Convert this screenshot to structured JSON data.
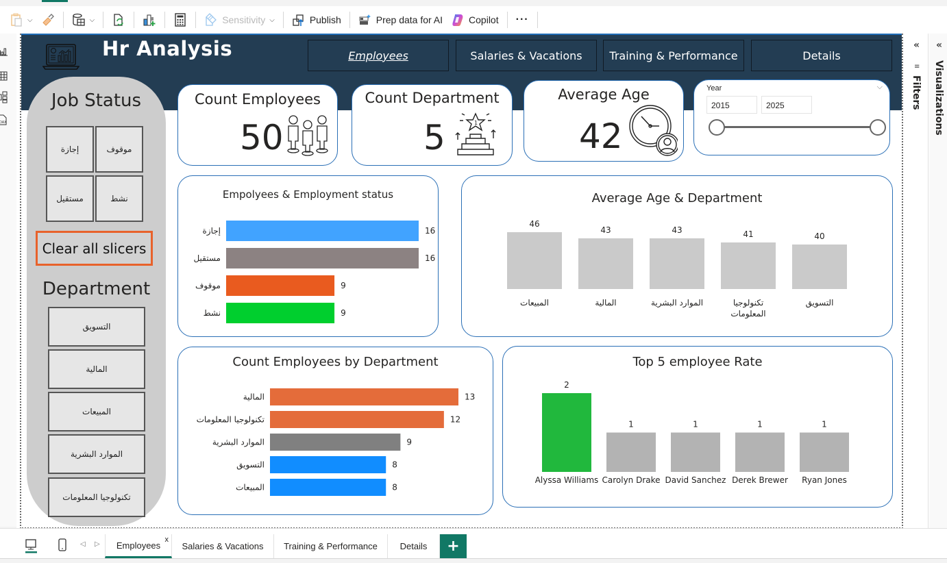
{
  "ribbon": {
    "items": [
      {
        "label": "",
        "icon": "paste-icon",
        "disabled": true
      },
      {
        "label": "",
        "icon": "format-painter-icon"
      },
      {
        "label": "",
        "icon": "get-data-icon"
      },
      {
        "label": "",
        "icon": "refresh-icon"
      },
      {
        "label": "",
        "icon": "new-visual-icon"
      },
      {
        "label": "",
        "icon": "calculator-icon"
      },
      {
        "label": "Sensitivity",
        "icon": "sensitivity-icon",
        "disabled": true
      },
      {
        "label": "Publish",
        "icon": "publish-icon"
      },
      {
        "label": "Prep data for AI",
        "icon": "prep-data-icon"
      },
      {
        "label": "Copilot",
        "icon": "copilot-icon"
      },
      {
        "label": "···",
        "icon": "more-icon"
      }
    ]
  },
  "header": {
    "title": "Hr Analysis",
    "nav": [
      {
        "label": "Employees",
        "active": true
      },
      {
        "label": "Salaries & Vacations",
        "active": false
      },
      {
        "label": "Training & Performance",
        "active": false
      },
      {
        "label": "Details",
        "active": false
      }
    ]
  },
  "sidepanel": {
    "job_status_title": "Job Status",
    "job_status_options": [
      "موقوف",
      "إجازة",
      "نشط",
      "مستقيل"
    ],
    "clear_label": "Clear all slicers",
    "department_title": "Department",
    "department_options": [
      "التسويق",
      "المالية",
      "المبيعات",
      "الموارد البشرية",
      "تكنولوجيا المعلومات"
    ]
  },
  "kpis": {
    "count_employees": {
      "title": "Count Employees",
      "value": "50"
    },
    "count_department": {
      "title": "Count Department",
      "value": "5"
    },
    "average_age": {
      "title": "Average Age",
      "value": "42"
    }
  },
  "year_slicer": {
    "label": "Year",
    "from": "2015",
    "to": "2025"
  },
  "chart_data": [
    {
      "type": "bar",
      "orientation": "horizontal",
      "title": "Empolyees & Employment status",
      "categories": [
        "إجازة",
        "مستقيل",
        "موقوف",
        "نشط"
      ],
      "values": [
        16,
        16,
        9,
        9
      ],
      "colors": [
        "#41a3ff",
        "#8c8282",
        "#e95b1f",
        "#00cf2e"
      ],
      "xlim": [
        0,
        16
      ]
    },
    {
      "type": "bar",
      "orientation": "vertical",
      "title": "Average Age & Department",
      "categories": [
        "المبيعات",
        "المالية",
        "الموارد البشرية",
        "تكنولوجيا المعلومات",
        "التسويق"
      ],
      "values": [
        46,
        43,
        43,
        41,
        40
      ],
      "colors": [
        "#cacaca",
        "#cacaca",
        "#cacaca",
        "#cacaca",
        "#cacaca"
      ],
      "ylim": [
        0,
        46
      ]
    },
    {
      "type": "bar",
      "orientation": "horizontal",
      "title": "Count Employees by Department",
      "categories": [
        "المالية",
        "تكنولوجيا المعلومات",
        "الموارد البشرية",
        "التسويق",
        "المبيعات"
      ],
      "values": [
        13,
        12,
        9,
        8,
        8
      ],
      "colors": [
        "#e46c3a",
        "#e46c3a",
        "#808080",
        "#118dff",
        "#118dff"
      ],
      "xlim": [
        0,
        13
      ]
    },
    {
      "type": "bar",
      "orientation": "vertical",
      "title": "Top 5 employee Rate",
      "categories": [
        "Alyssa Williams",
        "Carolyn Drake",
        "David Sanchez",
        "Derek Brewer",
        "Ryan Jones"
      ],
      "values": [
        2,
        1,
        1,
        1,
        1
      ],
      "colors": [
        "#21b83d",
        "#b3b3b3",
        "#b3b3b3",
        "#b3b3b3",
        "#b3b3b3"
      ],
      "ylim": [
        0,
        2
      ]
    }
  ],
  "right_panes": {
    "filters": "Filters",
    "visualizations": "Visualizations"
  },
  "page_tabs": {
    "tabs": [
      {
        "label": "Employees",
        "active": true,
        "close": "x"
      },
      {
        "label": "Salaries & Vacations",
        "active": false
      },
      {
        "label": "Training & Performance",
        "active": false
      },
      {
        "label": "Details",
        "active": false
      }
    ],
    "add_label": "+"
  }
}
